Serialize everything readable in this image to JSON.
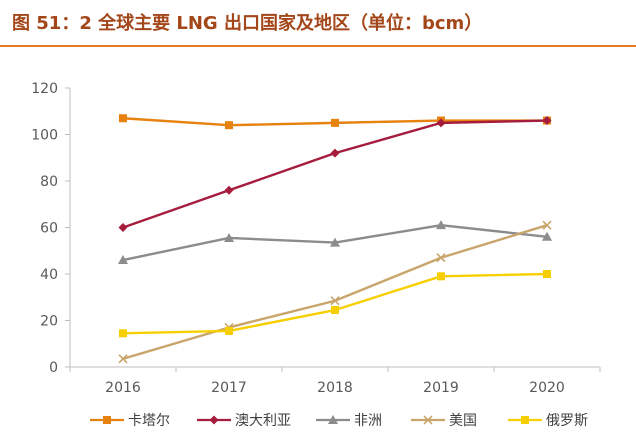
{
  "figure_title": "图 51：2 全球主要 LNG 出口国家及地区（单位：bcm）",
  "chart_data": {
    "type": "line",
    "title": "",
    "xlabel": "",
    "ylabel": "",
    "x": [
      "2016",
      "2017",
      "2018",
      "2019",
      "2020"
    ],
    "ylim": [
      0,
      120
    ],
    "yticks": [
      0,
      20,
      40,
      60,
      80,
      100,
      120
    ],
    "grid": false,
    "legend_position": "bottom",
    "series": [
      {
        "name": "卡塔尔",
        "values": [
          107,
          104,
          105,
          106,
          106
        ],
        "color": "#e8820f",
        "marker": "square"
      },
      {
        "name": "澳大利亚",
        "values": [
          60,
          76,
          92,
          105,
          106
        ],
        "color": "#a51c3c",
        "marker": "diamond"
      },
      {
        "name": "非洲",
        "values": [
          46,
          55.5,
          53.5,
          61,
          56
        ],
        "color": "#8c8c8c",
        "marker": "triangle"
      },
      {
        "name": "美国",
        "values": [
          3.5,
          17,
          28.5,
          47,
          61
        ],
        "color": "#c9a56b",
        "marker": "x"
      },
      {
        "name": "俄罗斯",
        "values": [
          14.5,
          15.5,
          24.5,
          39,
          40
        ],
        "color": "#f7cf00",
        "marker": "square"
      }
    ]
  }
}
